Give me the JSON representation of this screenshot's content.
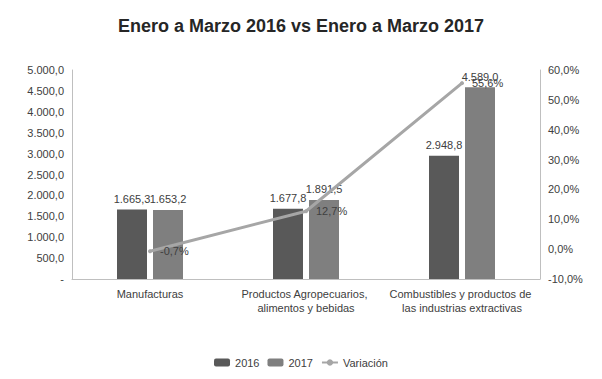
{
  "chart_data": {
    "type": "bar",
    "title": "Enero a Marzo 2016 vs Enero a Marzo 2017",
    "categories": [
      "Manufacturas",
      "Productos Agropecuarios, alimentos y bebidas",
      "Combustibles y productos de las industrias extractivas"
    ],
    "series": [
      {
        "name": "2016",
        "color": "#595959",
        "values": [
          1665.3,
          1677.8,
          2948.8
        ],
        "value_labels": [
          "1.665,3",
          "1.677,8",
          "2.948,8"
        ]
      },
      {
        "name": "2017",
        "color": "#7f7f7f",
        "values": [
          1653.2,
          1891.5,
          4589.0
        ],
        "value_labels": [
          "1.653,2",
          "1.891,5",
          "4.589,0"
        ]
      },
      {
        "name": "Variación",
        "type": "line",
        "axis": "y2",
        "color": "#a6a6a6",
        "values": [
          -0.7,
          12.7,
          55.6
        ],
        "value_labels": [
          "-0,7%",
          "12,7%",
          "55,6%"
        ]
      }
    ],
    "ylim": [
      0,
      5000
    ],
    "yticks": [
      {
        "value": 0,
        "label": "-"
      },
      {
        "value": 500,
        "label": "500,0"
      },
      {
        "value": 1000,
        "label": "1.000,0"
      },
      {
        "value": 1500,
        "label": "1.500,0"
      },
      {
        "value": 2000,
        "label": "2.000,0"
      },
      {
        "value": 2500,
        "label": "2.500,0"
      },
      {
        "value": 3000,
        "label": "3.000,0"
      },
      {
        "value": 3500,
        "label": "3.500,0"
      },
      {
        "value": 4000,
        "label": "4.000,0"
      },
      {
        "value": 4500,
        "label": "4.500,0"
      },
      {
        "value": 5000,
        "label": "5.000,0"
      }
    ],
    "y2lim": [
      -10,
      60
    ],
    "y2ticks": [
      {
        "value": -10,
        "label": "-10,0%"
      },
      {
        "value": 0,
        "label": "0,0%"
      },
      {
        "value": 10,
        "label": "10,0%"
      },
      {
        "value": 20,
        "label": "20,0%"
      },
      {
        "value": 30,
        "label": "30,0%"
      },
      {
        "value": 40,
        "label": "40,0%"
      },
      {
        "value": 50,
        "label": "50,0%"
      },
      {
        "value": 60,
        "label": "60,0%"
      }
    ],
    "grid": false,
    "legend": "bottom",
    "data_labels": true
  }
}
